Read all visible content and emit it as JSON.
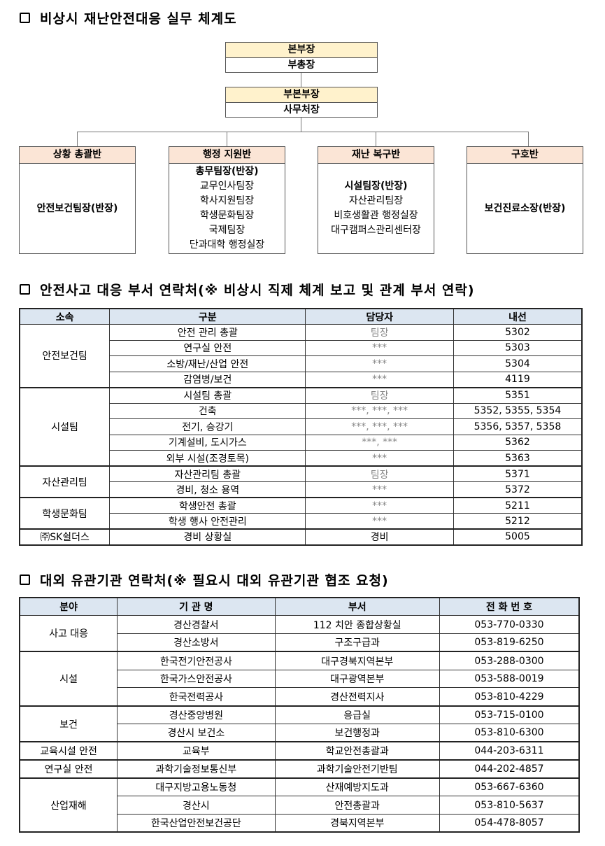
{
  "sections": {
    "org_title": "비상시 재난안전대응 실무 체계도",
    "contacts_title": "안전사고 대응 부서 연락처(※ 비상시 직제 체계 보고 및 관계 부서 연락)",
    "external_title": "대외 유관기관 연락처(※ 필요시 대외 유관기관 협조 요청)"
  },
  "org": {
    "head": {
      "title": "본부장",
      "sub": "부총장"
    },
    "deputy": {
      "title": "부본부장",
      "sub": "사무처장"
    },
    "teams": [
      {
        "title": "상황 총괄반",
        "lead": "안전보건팀장(반장)",
        "members": []
      },
      {
        "title": "행정 지원반",
        "lead": "총무팀장(반장)",
        "members": [
          "교무인사팀장",
          "학사지원팀장",
          "학생문화팀장",
          "국제팀장",
          "단과대학 행정실장"
        ]
      },
      {
        "title": "재난 복구반",
        "lead": "시설팀장(반장)",
        "members": [
          "자산관리팀장",
          "비호생활관 행정실장",
          "대구캠퍼스관리센터장"
        ]
      },
      {
        "title": "구호반",
        "lead": "보건진료소장(반장)",
        "members": []
      }
    ],
    "colors": {
      "head_fill": "#fff2cc",
      "team_fill": "#fbe5d6",
      "table_header_fill": "#dce6f1"
    }
  },
  "contacts": {
    "headers": [
      "소속",
      "구분",
      "담당자",
      "내선"
    ],
    "groups": [
      {
        "name": "안전보건팀",
        "rows": [
          [
            "안전 관리 총괄",
            "팀장",
            "5302"
          ],
          [
            "연구실 안전",
            "***",
            "5303"
          ],
          [
            "소방/재난/산업 안전",
            "***",
            "5304"
          ],
          [
            "감염병/보건",
            "***",
            "4119"
          ]
        ]
      },
      {
        "name": "시설팀",
        "rows": [
          [
            "시설팀 총괄",
            "팀장",
            "5351"
          ],
          [
            "건축",
            "***, ***, ***",
            "5352, 5355, 5354"
          ],
          [
            "전기, 승강기",
            "***, ***, ***",
            "5356, 5357, 5358"
          ],
          [
            "기계설비, 도시가스",
            "***, ***",
            "5362"
          ],
          [
            "외부 시설(조경토목)",
            "***",
            "5363"
          ]
        ]
      },
      {
        "name": "자산관리팀",
        "rows": [
          [
            "자산관리팀 총괄",
            "팀장",
            "5371"
          ],
          [
            "경비, 청소 용역",
            "***",
            "5372"
          ]
        ]
      },
      {
        "name": "학생문화팀",
        "rows": [
          [
            "학생안전 총괄",
            "***",
            "5211"
          ],
          [
            "학생 행사 안전관리",
            "***",
            "5212"
          ]
        ]
      },
      {
        "name": "㈜SK쉴더스",
        "rows": [
          [
            "경비 상황실",
            "경비",
            "5005"
          ]
        ]
      }
    ]
  },
  "external": {
    "headers": [
      "분야",
      "기 관 명",
      "부서",
      "전 화 번 호"
    ],
    "groups": [
      {
        "name": "사고 대응",
        "rows": [
          [
            "경산경찰서",
            "112 치안 종합상황실",
            "053-770-0330"
          ],
          [
            "경산소방서",
            "구조구급과",
            "053-819-6250"
          ]
        ]
      },
      {
        "name": "시설",
        "rows": [
          [
            "한국전기안전공사",
            "대구경북지역본부",
            "053-288-0300"
          ],
          [
            "한국가스안전공사",
            "대구광역본부",
            "053-588-0019"
          ],
          [
            "한국전력공사",
            "경산전력지사",
            "053-810-4229"
          ]
        ]
      },
      {
        "name": "보건",
        "rows": [
          [
            "경산중앙병원",
            "응급실",
            "053-715-0100"
          ],
          [
            "경산시 보건소",
            "보건행정과",
            "053-810-6300"
          ]
        ]
      },
      {
        "name": "교육시설 안전",
        "rows": [
          [
            "교육부",
            "학교안전총괄과",
            "044-203-6311"
          ]
        ]
      },
      {
        "name": "연구실 안전",
        "rows": [
          [
            "과학기술정보통신부",
            "과학기술안전기반팀",
            "044-202-4857"
          ]
        ]
      },
      {
        "name": "산업재해",
        "rows": [
          [
            "대구지방고용노동청",
            "산재예방지도과",
            "053-667-6360"
          ],
          [
            "경산시",
            "안전총괄과",
            "053-810-5637"
          ],
          [
            "한국산업안전보건공단",
            "경북지역본부",
            "054-478-8057"
          ]
        ]
      }
    ]
  }
}
